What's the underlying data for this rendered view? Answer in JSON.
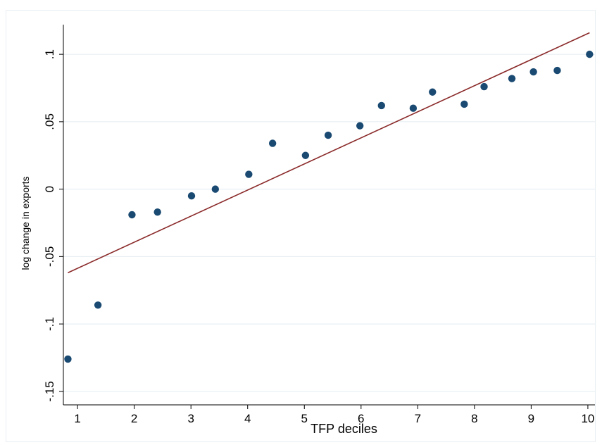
{
  "chart_data": {
    "type": "scatter",
    "xlabel": "TFP deciles",
    "ylabel": "log change in exports",
    "xlim": [
      0.75,
      10.15
    ],
    "ylim": [
      -0.16,
      0.122
    ],
    "x_ticks": [
      1,
      2,
      3,
      4,
      5,
      6,
      7,
      8,
      9,
      10
    ],
    "x_tick_labels": [
      "1",
      "2",
      "3",
      "4",
      "5",
      "6",
      "7",
      "8",
      "9",
      "10"
    ],
    "y_ticks": [
      -0.15,
      -0.1,
      -0.05,
      0,
      0.05,
      0.1
    ],
    "y_tick_labels": [
      "-.15",
      "-.1",
      "-.05",
      "0",
      ".05",
      ".1"
    ],
    "grid": "horizontal",
    "legend": "none",
    "series": [
      {
        "type": "scatter",
        "color": "#1a4a72",
        "points": [
          {
            "x": 0.83,
            "y": -0.126
          },
          {
            "x": 1.36,
            "y": -0.086
          },
          {
            "x": 1.96,
            "y": -0.019
          },
          {
            "x": 2.41,
            "y": -0.017
          },
          {
            "x": 3.01,
            "y": -0.005
          },
          {
            "x": 3.43,
            "y": 0.0
          },
          {
            "x": 4.02,
            "y": 0.011
          },
          {
            "x": 4.44,
            "y": 0.034
          },
          {
            "x": 5.02,
            "y": 0.025
          },
          {
            "x": 5.42,
            "y": 0.04
          },
          {
            "x": 5.98,
            "y": 0.047
          },
          {
            "x": 6.36,
            "y": 0.062
          },
          {
            "x": 6.92,
            "y": 0.06
          },
          {
            "x": 7.26,
            "y": 0.072
          },
          {
            "x": 7.82,
            "y": 0.063
          },
          {
            "x": 8.17,
            "y": 0.076
          },
          {
            "x": 8.66,
            "y": 0.082
          },
          {
            "x": 9.04,
            "y": 0.087
          },
          {
            "x": 9.46,
            "y": 0.088
          },
          {
            "x": 10.03,
            "y": 0.1
          }
        ]
      },
      {
        "type": "line",
        "color": "#8b2a2a",
        "points": [
          {
            "x": 0.83,
            "y": -0.062
          },
          {
            "x": 10.03,
            "y": 0.116
          }
        ]
      }
    ]
  }
}
